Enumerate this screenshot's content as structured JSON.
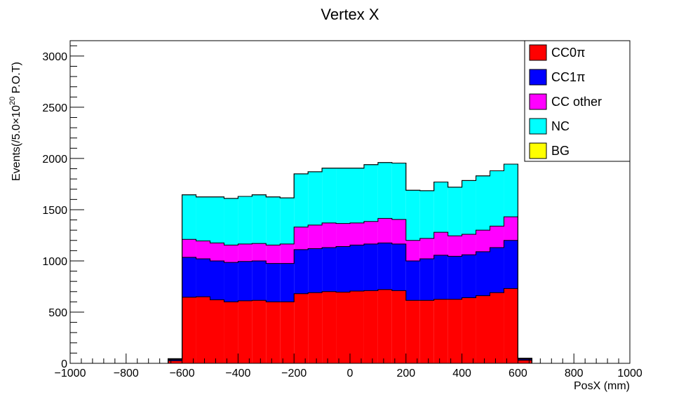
{
  "chart_data": {
    "type": "bar",
    "stacked": true,
    "title": "Vertex X",
    "xlabel": "PosX (mm)",
    "ylabel_prefix": "Events(/5.0×10",
    "ylabel_sup": "20",
    "ylabel_suffix": " P.O.T)",
    "xlim": [
      -1000,
      1000
    ],
    "ylim": [
      0,
      3150
    ],
    "bin_width": 50,
    "grid": false,
    "legend_position": "top-right",
    "x_ticks": [
      {
        "value": -1000,
        "label": "−1000"
      },
      {
        "value": -800,
        "label": "−800"
      },
      {
        "value": -600,
        "label": "−600"
      },
      {
        "value": -400,
        "label": "−400"
      },
      {
        "value": -200,
        "label": "−200"
      },
      {
        "value": 0,
        "label": "0"
      },
      {
        "value": 200,
        "label": "200"
      },
      {
        "value": 400,
        "label": "400"
      },
      {
        "value": 600,
        "label": "600"
      },
      {
        "value": 800,
        "label": "800"
      },
      {
        "value": 1000,
        "label": "1000"
      }
    ],
    "y_ticks": [
      {
        "value": 0,
        "label": "0"
      },
      {
        "value": 500,
        "label": "500"
      },
      {
        "value": 1000,
        "label": "1000"
      },
      {
        "value": 1500,
        "label": "1500"
      },
      {
        "value": 2000,
        "label": "2000"
      },
      {
        "value": 2500,
        "label": "2500"
      },
      {
        "value": 3000,
        "label": "3000"
      }
    ],
    "bin_low_edges": [
      -650,
      -600,
      -550,
      -500,
      -450,
      -400,
      -350,
      -300,
      -250,
      -200,
      -150,
      -100,
      -50,
      0,
      50,
      100,
      150,
      200,
      250,
      300,
      350,
      400,
      450,
      500,
      550,
      600
    ],
    "series": [
      {
        "name": "CC0π",
        "color": "#ff0000",
        "values": [
          25,
          645,
          650,
          620,
          600,
          610,
          615,
          600,
          600,
          680,
          690,
          700,
          695,
          705,
          710,
          720,
          710,
          615,
          615,
          625,
          625,
          640,
          660,
          690,
          730,
          30
        ]
      },
      {
        "name": "CC1π",
        "color": "#0000ff",
        "values": [
          10,
          390,
          370,
          380,
          385,
          385,
          385,
          375,
          375,
          430,
          430,
          430,
          445,
          450,
          455,
          455,
          455,
          385,
          405,
          430,
          420,
          420,
          430,
          440,
          470,
          10
        ]
      },
      {
        "name": "CC other",
        "color": "#ff00ff",
        "values": [
          5,
          175,
          175,
          175,
          170,
          170,
          170,
          180,
          190,
          220,
          230,
          240,
          225,
          215,
          220,
          240,
          240,
          200,
          200,
          225,
          200,
          200,
          210,
          210,
          230,
          5
        ]
      },
      {
        "name": "NC",
        "color": "#00ffff",
        "values": [
          5,
          435,
          430,
          450,
          455,
          465,
          475,
          470,
          450,
          520,
          520,
          535,
          540,
          535,
          555,
          545,
          550,
          490,
          465,
          490,
          475,
          525,
          530,
          540,
          515,
          5
        ]
      },
      {
        "name": "BG",
        "color": "#ffff00",
        "values": [
          0,
          0,
          0,
          0,
          0,
          0,
          0,
          0,
          0,
          0,
          0,
          0,
          0,
          0,
          0,
          0,
          0,
          0,
          0,
          0,
          0,
          0,
          0,
          0,
          0,
          0
        ]
      }
    ]
  }
}
